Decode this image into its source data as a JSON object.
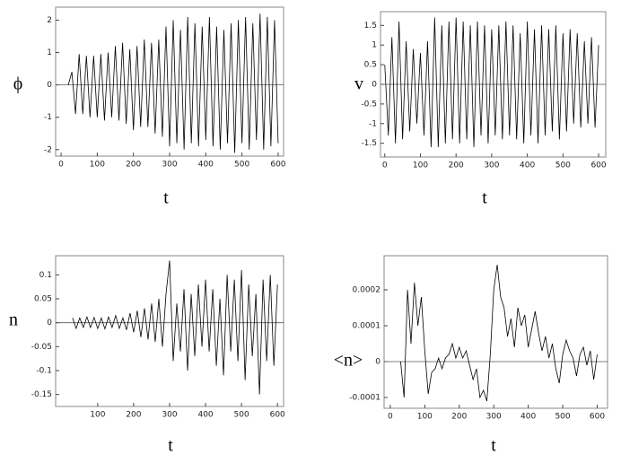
{
  "chart_data": [
    {
      "type": "line",
      "y_label": "ϕ",
      "x_label": "t",
      "color": "#000000",
      "x": [
        20,
        30,
        40,
        50,
        60,
        70,
        80,
        90,
        100,
        110,
        120,
        130,
        140,
        150,
        160,
        170,
        180,
        190,
        200,
        210,
        220,
        230,
        240,
        250,
        260,
        270,
        280,
        290,
        300,
        310,
        320,
        330,
        340,
        350,
        360,
        370,
        380,
        390,
        400,
        410,
        420,
        430,
        440,
        450,
        460,
        470,
        480,
        490,
        500,
        510,
        520,
        530,
        540,
        550,
        560,
        570,
        580,
        590,
        600
      ],
      "values": [
        0,
        0.4,
        -0.9,
        0.95,
        -0.9,
        0.9,
        -1.0,
        0.9,
        -1.0,
        0.95,
        -1.1,
        1.0,
        -1.0,
        1.2,
        -1.1,
        1.3,
        -1.2,
        1.1,
        -1.4,
        1.2,
        -1.3,
        1.4,
        -1.3,
        1.3,
        -1.5,
        1.4,
        -1.6,
        1.8,
        -1.9,
        2.0,
        -1.8,
        1.7,
        -2.0,
        2.1,
        -1.8,
        1.9,
        -1.9,
        1.8,
        -1.7,
        2.1,
        -1.9,
        1.8,
        -2.0,
        1.7,
        -1.8,
        1.9,
        -2.1,
        2.0,
        -1.8,
        2.1,
        -2.0,
        1.9,
        -1.7,
        2.2,
        -2.0,
        2.1,
        -1.9,
        2.0,
        -1.8
      ],
      "xlim": [
        -15,
        615
      ],
      "ylim": [
        -2.2,
        2.4
      ],
      "xticks": [
        0,
        100,
        200,
        300,
        400,
        500,
        600
      ],
      "yticks": [
        -2,
        -1,
        0,
        1,
        2
      ]
    },
    {
      "type": "line",
      "y_label": "v",
      "x_label": "t",
      "color": "#000000",
      "x": [
        0,
        10,
        20,
        30,
        40,
        50,
        60,
        70,
        80,
        90,
        100,
        110,
        120,
        130,
        140,
        150,
        160,
        170,
        180,
        190,
        200,
        210,
        220,
        230,
        240,
        250,
        260,
        270,
        280,
        290,
        300,
        310,
        320,
        330,
        340,
        350,
        360,
        370,
        380,
        390,
        400,
        410,
        420,
        430,
        440,
        450,
        460,
        470,
        480,
        490,
        500,
        510,
        520,
        530,
        540,
        550,
        560,
        570,
        580,
        590,
        600
      ],
      "values": [
        0.5,
        -1.3,
        1.2,
        -1.5,
        1.6,
        -1.4,
        1.1,
        -1.2,
        0.9,
        -1.0,
        0.8,
        -1.3,
        1.1,
        -1.6,
        1.7,
        -1.6,
        1.5,
        -1.5,
        1.6,
        -1.4,
        1.7,
        -1.5,
        1.6,
        -1.4,
        1.5,
        -1.6,
        1.6,
        -1.3,
        1.5,
        -1.5,
        1.4,
        -1.3,
        1.5,
        -1.4,
        1.6,
        -1.3,
        1.5,
        -1.4,
        1.3,
        -1.5,
        1.6,
        -1.3,
        1.4,
        -1.5,
        1.5,
        -1.3,
        1.4,
        -1.2,
        1.5,
        -1.4,
        1.3,
        -1.2,
        1.4,
        -1.0,
        1.3,
        -1.1,
        1.1,
        -1.0,
        1.2,
        -1.1,
        1.0
      ],
      "xlim": [
        -12,
        620
      ],
      "ylim": [
        -1.85,
        1.85
      ],
      "xticks": [
        0,
        100,
        200,
        300,
        400,
        500,
        600
      ],
      "yticks": [
        -1.5,
        -1,
        -0.5,
        0,
        0.5,
        1,
        1.5
      ]
    },
    {
      "type": "line",
      "y_label": "n",
      "x_label": "t",
      "color": "#000000",
      "x": [
        30,
        40,
        50,
        60,
        70,
        80,
        90,
        100,
        110,
        120,
        130,
        140,
        150,
        160,
        170,
        180,
        190,
        200,
        210,
        220,
        230,
        240,
        250,
        260,
        270,
        280,
        290,
        300,
        310,
        320,
        330,
        340,
        350,
        360,
        370,
        380,
        390,
        400,
        410,
        420,
        430,
        440,
        450,
        460,
        470,
        480,
        490,
        500,
        510,
        520,
        530,
        540,
        550,
        560,
        570,
        580,
        590,
        600
      ],
      "values": [
        0.01,
        -0.012,
        0.01,
        -0.01,
        0.012,
        -0.01,
        0.011,
        -0.012,
        0.01,
        -0.013,
        0.012,
        -0.01,
        0.015,
        -0.012,
        0.01,
        -0.015,
        0.02,
        -0.02,
        0.025,
        -0.03,
        0.03,
        -0.035,
        0.04,
        -0.04,
        0.05,
        -0.05,
        0.06,
        0.13,
        -0.08,
        0.04,
        -0.06,
        0.07,
        -0.1,
        0.06,
        -0.07,
        0.08,
        -0.05,
        0.09,
        -0.06,
        0.07,
        -0.09,
        0.05,
        -0.11,
        0.1,
        -0.06,
        0.09,
        -0.08,
        0.11,
        -0.12,
        0.08,
        -0.07,
        0.06,
        -0.15,
        0.09,
        -0.08,
        0.1,
        -0.09,
        0.08
      ],
      "xlim": [
        -17,
        617
      ],
      "ylim": [
        -0.175,
        0.14
      ],
      "xticks": [
        100,
        200,
        300,
        400,
        500,
        600
      ],
      "yticks": [
        -0.15,
        -0.1,
        -0.05,
        0,
        0.05,
        0.1
      ]
    },
    {
      "type": "line",
      "y_label": "<n>",
      "x_label": "t",
      "color": "#000000",
      "x": [
        30,
        40,
        50,
        60,
        70,
        80,
        90,
        100,
        110,
        120,
        130,
        140,
        150,
        160,
        170,
        180,
        190,
        200,
        210,
        220,
        230,
        240,
        250,
        260,
        270,
        280,
        290,
        300,
        310,
        320,
        330,
        340,
        350,
        360,
        370,
        380,
        390,
        400,
        410,
        420,
        430,
        440,
        450,
        460,
        470,
        480,
        490,
        500,
        510,
        520,
        530,
        540,
        550,
        560,
        570,
        580,
        590,
        600
      ],
      "values": [
        0,
        -0.0001,
        0.0002,
        5e-05,
        0.00022,
        0.0001,
        0.00018,
        3e-05,
        -9e-05,
        -3e-05,
        -2e-05,
        1e-05,
        -2e-05,
        1e-05,
        2e-05,
        5e-05,
        1e-05,
        4e-05,
        1e-05,
        3e-05,
        -1e-05,
        -5e-05,
        -2e-05,
        -0.0001,
        -8e-05,
        -0.00011,
        2e-05,
        0.0002,
        0.00027,
        0.00018,
        0.00015,
        7e-05,
        0.00012,
        4e-05,
        0.00015,
        0.0001,
        0.00013,
        4e-05,
        9e-05,
        0.00014,
        8e-05,
        3e-05,
        7e-05,
        1e-05,
        5e-05,
        -2e-05,
        -6e-05,
        2e-05,
        6e-05,
        3e-05,
        1e-05,
        -4e-05,
        2e-05,
        4e-05,
        -1e-05,
        3e-05,
        -5e-05,
        2e-05
      ],
      "xlim": [
        -18,
        630
      ],
      "ylim": [
        -0.00013,
        0.000295
      ],
      "xticks": [
        0,
        100,
        200,
        300,
        400,
        500,
        600
      ],
      "yticks": [
        -0.0001,
        0,
        0.0001,
        0.0002
      ]
    }
  ]
}
